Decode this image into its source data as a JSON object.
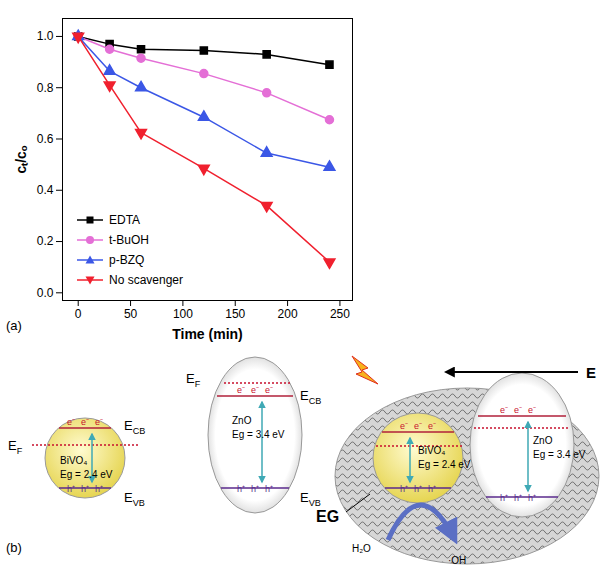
{
  "chart_data": {
    "type": "line",
    "annotations": [
      "(a)"
    ],
    "x_label": "Time (min)",
    "y_label": "cₜ/cₒ",
    "x": [
      0,
      30,
      60,
      120,
      180,
      240
    ],
    "series": [
      {
        "name": "EDTA",
        "color": "#000000",
        "marker": "square",
        "values": [
          1.0,
          0.97,
          0.95,
          0.945,
          0.93,
          0.89
        ]
      },
      {
        "name": "t-BuOH",
        "color": "#e46fd6",
        "marker": "circle",
        "values": [
          1.0,
          0.95,
          0.915,
          0.855,
          0.78,
          0.675
        ]
      },
      {
        "name": "p-BZQ",
        "color": "#3b57e6",
        "marker": "triangle",
        "values": [
          1.0,
          0.865,
          0.8,
          0.685,
          0.545,
          0.49
        ]
      },
      {
        "name": "No scavenger",
        "color": "#f0202e",
        "marker": "triangle-down",
        "values": [
          1.0,
          0.81,
          0.625,
          0.485,
          0.34,
          0.12
        ]
      }
    ],
    "xlim": [
      -15,
      262
    ],
    "xticks": [
      0,
      50,
      100,
      150,
      200,
      250
    ],
    "ylim": [
      -0.03,
      1.07
    ],
    "yticks": [
      {
        "value": 0,
        "label": "0.0"
      },
      0.2,
      0.4,
      0.6,
      0.8,
      {
        "value": 1,
        "label": "1.0"
      }
    ],
    "legend": "lower left",
    "grid": false
  },
  "diagram": {
    "label": "(b)",
    "bivo4": {
      "name": "BiVO₄",
      "eg": "Eg = 2.4 eV",
      "cb": {
        "text": "E",
        "sub": "CB"
      },
      "vb": {
        "text": "E",
        "sub": "VB"
      },
      "fermi": {
        "text": "E",
        "sub": "F"
      },
      "electron": "e⁻",
      "hole": "h⁺"
    },
    "zno": {
      "name": "ZnO",
      "eg": "Eg = 3.4 eV",
      "cb": {
        "text": "E",
        "sub": "CB"
      },
      "vb": {
        "text": "E",
        "sub": "VB"
      },
      "fermi": {
        "text": "E",
        "sub": "F"
      },
      "electron": "e⁻",
      "hole": "h⁺"
    },
    "composite": {
      "field": "E",
      "support": "EG",
      "reactant": "H₂O",
      "product": "·OH"
    }
  }
}
